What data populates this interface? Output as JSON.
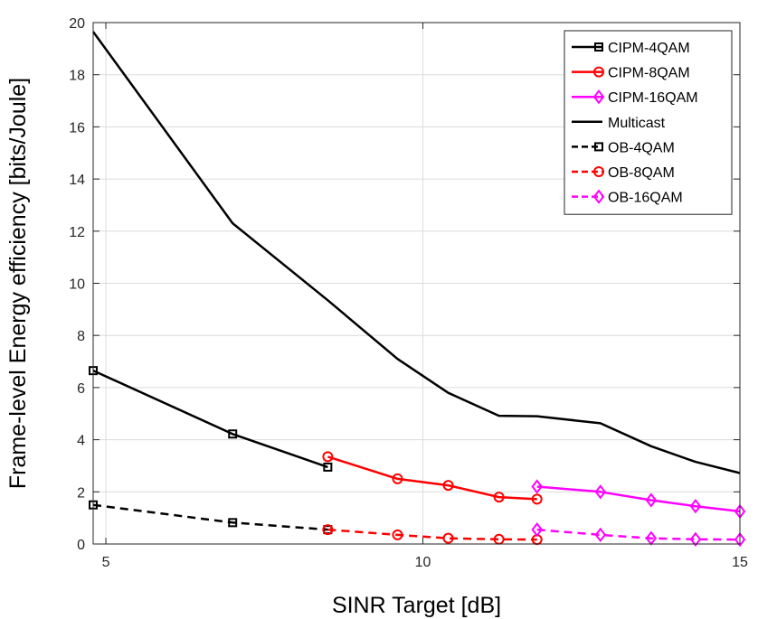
{
  "chart_data": {
    "type": "line",
    "title": "",
    "xlabel": "SINR Target [dB]",
    "ylabel": "Frame-level Energy efficiency [bits/Joule]",
    "xlim": [
      4.8,
      15
    ],
    "ylim": [
      0,
      20
    ],
    "xticks": [
      "5",
      "10",
      "15"
    ],
    "yticks": [
      "0",
      "2",
      "4",
      "6",
      "8",
      "10",
      "12",
      "14",
      "16",
      "18",
      "20"
    ],
    "grid": true,
    "legend_position": "top-right",
    "series": [
      {
        "name": "CIPM-4QAM",
        "color": "#000000",
        "dash": "solid",
        "marker": "square",
        "x": [
          4.8,
          7.0,
          8.5
        ],
        "y": [
          6.65,
          4.22,
          2.95
        ]
      },
      {
        "name": "CIPM-8QAM",
        "color": "#ff0000",
        "dash": "solid",
        "marker": "circle",
        "x": [
          8.5,
          9.6,
          10.4,
          11.2,
          11.8
        ],
        "y": [
          3.35,
          2.5,
          2.25,
          1.8,
          1.72
        ]
      },
      {
        "name": "CIPM-16QAM",
        "color": "#ff00ff",
        "dash": "solid",
        "marker": "diamond",
        "x": [
          11.8,
          12.8,
          13.6,
          14.3,
          15.0
        ],
        "y": [
          2.2,
          2.0,
          1.68,
          1.45,
          1.25
        ]
      },
      {
        "name": "Multicast",
        "color": "#000000",
        "dash": "solid",
        "marker": "none",
        "x": [
          4.8,
          7.0,
          8.5,
          9.6,
          10.4,
          11.2,
          11.8,
          12.8,
          13.6,
          14.3,
          15.0
        ],
        "y": [
          19.65,
          12.3,
          9.35,
          7.1,
          5.8,
          4.92,
          4.9,
          4.63,
          3.75,
          3.15,
          2.72
        ]
      },
      {
        "name": "OB-4QAM",
        "color": "#000000",
        "dash": "dashed",
        "marker": "square",
        "x": [
          4.8,
          7.0,
          8.5
        ],
        "y": [
          1.5,
          0.82,
          0.55
        ]
      },
      {
        "name": "OB-8QAM",
        "color": "#ff0000",
        "dash": "dashed",
        "marker": "circle",
        "x": [
          8.5,
          9.6,
          10.4,
          11.2,
          11.8
        ],
        "y": [
          0.55,
          0.35,
          0.22,
          0.18,
          0.17
        ]
      },
      {
        "name": "OB-16QAM",
        "color": "#ff00ff",
        "dash": "dashed",
        "marker": "diamond",
        "x": [
          11.8,
          12.8,
          13.6,
          14.3,
          15.0
        ],
        "y": [
          0.55,
          0.35,
          0.22,
          0.18,
          0.17
        ]
      }
    ]
  }
}
